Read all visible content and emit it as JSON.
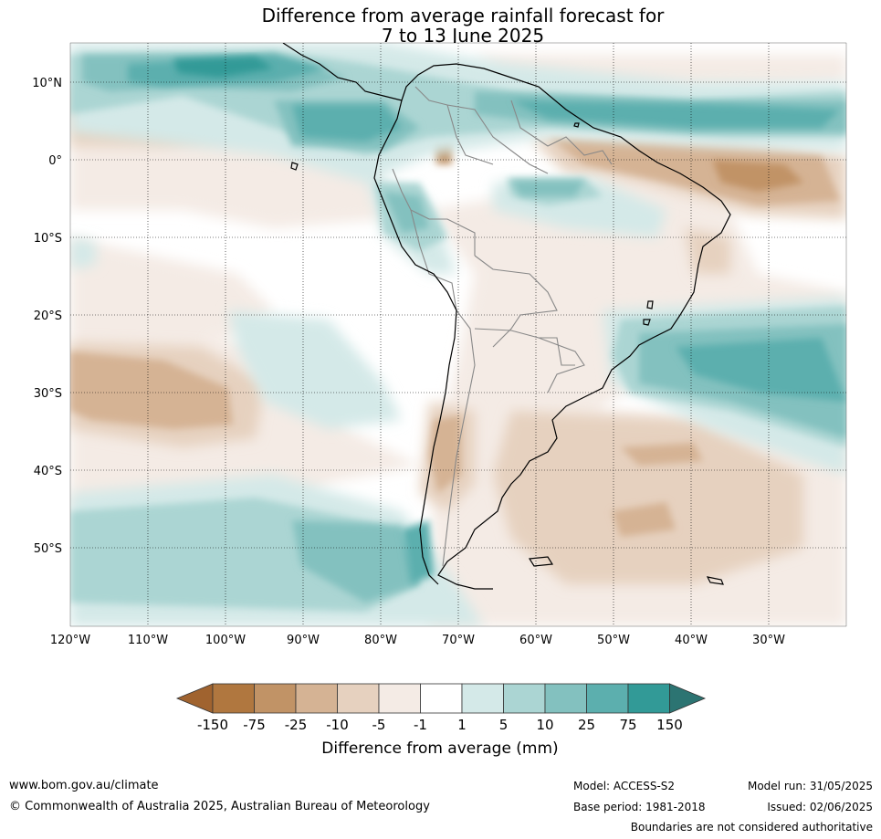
{
  "title": {
    "line1": "Difference from average rainfall forecast for",
    "line2": "7 to 13 June 2025"
  },
  "map": {
    "lat_labels": [
      "10°N",
      "0°",
      "10°S",
      "20°S",
      "30°S",
      "40°S",
      "50°S"
    ],
    "lon_labels": [
      "120°W",
      "110°W",
      "100°W",
      "90°W",
      "80°W",
      "70°W",
      "60°W",
      "50°W",
      "40°W",
      "30°W"
    ],
    "lon_range": [
      -120,
      -20
    ],
    "lat_range": [
      -60,
      15
    ]
  },
  "colorbar": {
    "title": "Difference from average (mm)",
    "ticks": [
      "-150",
      "-75",
      "-25",
      "-10",
      "-5",
      "-1",
      "1",
      "5",
      "10",
      "25",
      "75",
      "150"
    ],
    "colors": [
      "#a0632f",
      "#b0773f",
      "#c19366",
      "#d5b394",
      "#e6d1bf",
      "#f4ebe5",
      "#ffffff",
      "#d4e9e8",
      "#abd5d3",
      "#83c1bf",
      "#5cafae",
      "#329a97",
      "#2c7472"
    ],
    "levels": [
      -150,
      -75,
      -25,
      -10,
      -5,
      -1,
      1,
      5,
      10,
      25,
      75,
      150
    ]
  },
  "footer": {
    "website": "www.bom.gov.au/climate",
    "copyright": "© Commonwealth of Australia 2025, Australian Bureau of Meteorology",
    "model": "Model: ACCESS-S2",
    "model_run": "Model run: 31/05/2025",
    "base_period": "Base period: 1981-2018",
    "issued": "Issued: 02/06/2025",
    "disclaimer": "Boundaries are not considered authoritative"
  }
}
